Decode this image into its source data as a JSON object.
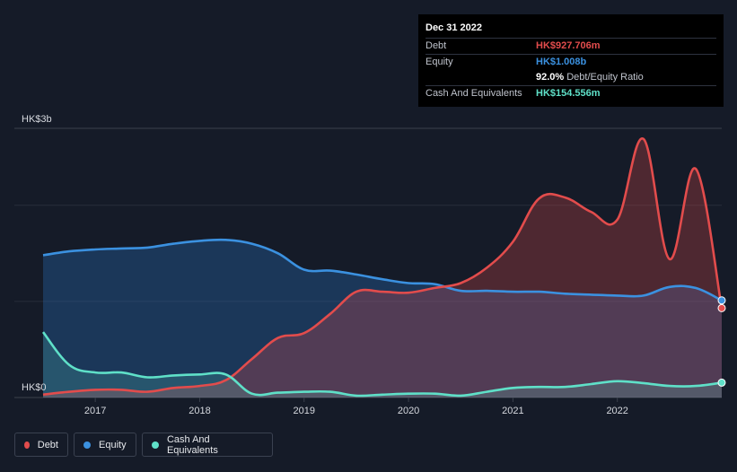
{
  "tooltip": {
    "date": "Dec 31 2022",
    "debt_label": "Debt",
    "debt_value": "HK$927.706m",
    "equity_label": "Equity",
    "equity_value": "HK$1.008b",
    "ratio_value": "92.0%",
    "ratio_label": "Debt/Equity Ratio",
    "cash_label": "Cash And Equivalents",
    "cash_value": "HK$154.556m"
  },
  "legend": {
    "debt": "Debt",
    "equity": "Equity",
    "cash": "Cash And Equivalents"
  },
  "colors": {
    "debt": "#e24c4c",
    "equity": "#3b91e0",
    "cash": "#5fe0c8",
    "background": "#151b28"
  },
  "chart_data": {
    "type": "area",
    "ylabel_top": "HK$3b",
    "ylabel_bottom": "HK$0",
    "ylim": [
      0,
      2.8
    ],
    "y_unit": "HK$ billions",
    "xlim": [
      2016.5,
      2023.0
    ],
    "x_ticks": [
      "2017",
      "2018",
      "2019",
      "2020",
      "2021",
      "2022"
    ],
    "grid": true,
    "legend_position": "bottom-left",
    "series": [
      {
        "name": "Debt",
        "x": [
          2016.5,
          2016.75,
          2017.0,
          2017.25,
          2017.5,
          2017.75,
          2018.0,
          2018.25,
          2018.5,
          2018.75,
          2019.0,
          2019.25,
          2019.5,
          2019.75,
          2020.0,
          2020.25,
          2020.5,
          2020.75,
          2021.0,
          2021.25,
          2021.5,
          2021.75,
          2022.0,
          2022.25,
          2022.5,
          2022.75,
          2023.0
        ],
        "values": [
          0.03,
          0.06,
          0.08,
          0.08,
          0.06,
          0.1,
          0.12,
          0.18,
          0.4,
          0.62,
          0.67,
          0.87,
          1.1,
          1.1,
          1.09,
          1.14,
          1.19,
          1.35,
          1.62,
          2.07,
          2.08,
          1.93,
          1.85,
          2.69,
          1.44,
          2.38,
          0.93
        ]
      },
      {
        "name": "Equity",
        "x": [
          2016.5,
          2016.75,
          2017.0,
          2017.25,
          2017.5,
          2017.75,
          2018.0,
          2018.25,
          2018.5,
          2018.75,
          2019.0,
          2019.25,
          2019.5,
          2019.75,
          2020.0,
          2020.25,
          2020.5,
          2020.75,
          2021.0,
          2021.25,
          2021.5,
          2021.75,
          2022.0,
          2022.25,
          2022.5,
          2022.75,
          2023.0
        ],
        "values": [
          1.48,
          1.52,
          1.54,
          1.55,
          1.56,
          1.6,
          1.63,
          1.64,
          1.6,
          1.5,
          1.33,
          1.32,
          1.28,
          1.23,
          1.19,
          1.18,
          1.11,
          1.11,
          1.1,
          1.1,
          1.08,
          1.07,
          1.06,
          1.06,
          1.15,
          1.14,
          1.01
        ]
      },
      {
        "name": "Cash And Equivalents",
        "x": [
          2016.5,
          2016.75,
          2017.0,
          2017.25,
          2017.5,
          2017.75,
          2018.0,
          2018.25,
          2018.5,
          2018.75,
          2019.0,
          2019.25,
          2019.5,
          2019.75,
          2020.0,
          2020.25,
          2020.5,
          2020.75,
          2021.0,
          2021.25,
          2021.5,
          2021.75,
          2022.0,
          2022.25,
          2022.5,
          2022.75,
          2023.0
        ],
        "values": [
          0.68,
          0.34,
          0.26,
          0.26,
          0.21,
          0.23,
          0.24,
          0.24,
          0.04,
          0.05,
          0.06,
          0.06,
          0.02,
          0.03,
          0.04,
          0.04,
          0.02,
          0.06,
          0.1,
          0.11,
          0.11,
          0.14,
          0.17,
          0.15,
          0.12,
          0.12,
          0.155
        ]
      }
    ]
  }
}
